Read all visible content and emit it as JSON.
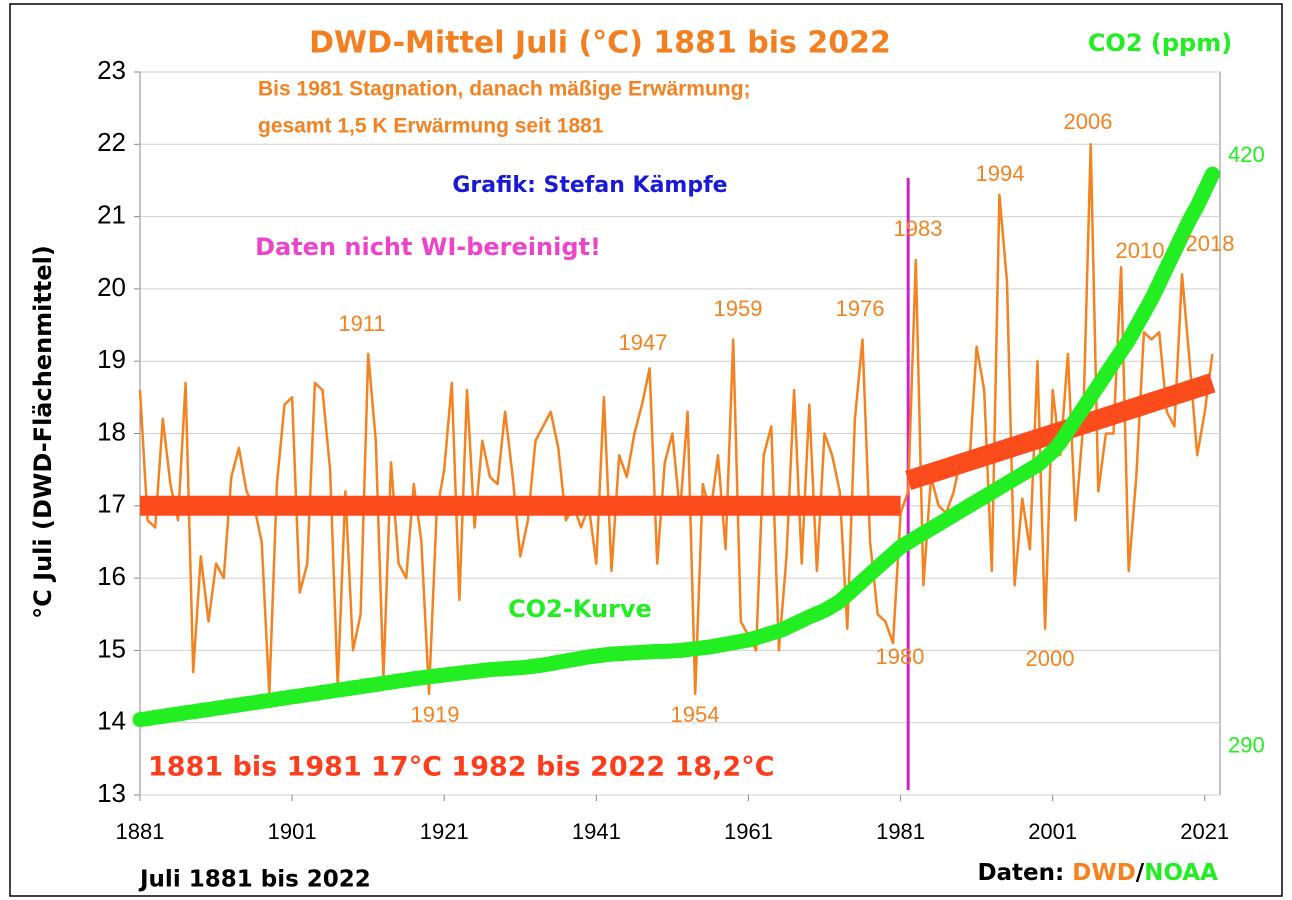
{
  "chart_data": {
    "type": "line",
    "title": "DWD-Mittel Juli (°C) 1881 bis 2022",
    "y_label": "°C Juli (DWD-Flächenmittel)",
    "y2_label": "CO2 (ppm)",
    "x_label": "Juli 1881 bis 2022",
    "notes": [
      "Bis 1981 Stagnation, danach mäßige Erwärmung;",
      "gesamt  1,5 K Erwärmung seit 1881"
    ],
    "credit": "Grafik: Stefan Kämpfe",
    "warning": "Daten nicht WI-bereinigt!",
    "co2_label": "CO2-Kurve",
    "means": "1881 bis 1981 17°C  1982 bis 2022 18,2°C",
    "source": [
      "Daten: ",
      "DWD",
      "/",
      "NOAA"
    ],
    "xlim": [
      1881,
      2023
    ],
    "xticks": [
      1881,
      1901,
      1921,
      1941,
      1961,
      1981,
      2001,
      2021
    ],
    "ylim": [
      13,
      23
    ],
    "yticks": [
      13,
      14,
      15,
      16,
      17,
      18,
      19,
      20,
      21,
      22,
      23
    ],
    "y2lim": [
      279.4,
      438.5
    ],
    "y2ticks": [
      290,
      420
    ],
    "grid": true,
    "x": [
      1881,
      1882,
      1883,
      1884,
      1885,
      1886,
      1887,
      1888,
      1889,
      1890,
      1891,
      1892,
      1893,
      1894,
      1895,
      1896,
      1897,
      1898,
      1899,
      1900,
      1901,
      1902,
      1903,
      1904,
      1905,
      1906,
      1907,
      1908,
      1909,
      1910,
      1911,
      1912,
      1913,
      1914,
      1915,
      1916,
      1917,
      1918,
      1919,
      1920,
      1921,
      1922,
      1923,
      1924,
      1925,
      1926,
      1927,
      1928,
      1929,
      1930,
      1931,
      1932,
      1933,
      1934,
      1935,
      1936,
      1937,
      1938,
      1939,
      1940,
      1941,
      1942,
      1943,
      1944,
      1945,
      1946,
      1947,
      1948,
      1949,
      1950,
      1951,
      1952,
      1953,
      1954,
      1955,
      1956,
      1957,
      1958,
      1959,
      1960,
      1961,
      1962,
      1963,
      1964,
      1965,
      1966,
      1967,
      1968,
      1969,
      1970,
      1971,
      1972,
      1973,
      1974,
      1975,
      1976,
      1977,
      1978,
      1979,
      1980,
      1981,
      1982,
      1983,
      1984,
      1985,
      1986,
      1987,
      1988,
      1989,
      1990,
      1991,
      1992,
      1993,
      1994,
      1995,
      1996,
      1997,
      1998,
      1999,
      2000,
      2001,
      2002,
      2003,
      2004,
      2005,
      2006,
      2007,
      2008,
      2009,
      2010,
      2011,
      2012,
      2013,
      2014,
      2015,
      2016,
      2017,
      2018,
      2019,
      2020,
      2021,
      2022
    ],
    "series": [
      {
        "name": "DWD",
        "color": "#f58220",
        "values": [
          18.6,
          16.8,
          16.7,
          18.2,
          17.3,
          16.8,
          18.7,
          14.7,
          16.3,
          15.4,
          16.2,
          16.0,
          17.4,
          17.8,
          17.2,
          17.0,
          16.5,
          14.4,
          17.3,
          18.4,
          18.5,
          15.8,
          16.2,
          18.7,
          18.6,
          17.5,
          14.5,
          17.2,
          15.0,
          15.5,
          19.1,
          17.9,
          14.6,
          17.6,
          16.2,
          16.0,
          17.3,
          16.5,
          14.4,
          16.9,
          17.5,
          18.7,
          15.7,
          18.6,
          16.7,
          17.9,
          17.4,
          17.3,
          18.3,
          17.4,
          16.3,
          16.8,
          17.9,
          18.1,
          18.3,
          17.8,
          16.8,
          17.0,
          16.7,
          17.0,
          16.2,
          18.5,
          16.1,
          17.7,
          17.4,
          18.0,
          18.4,
          18.9,
          16.2,
          17.6,
          18.0,
          16.9,
          18.3,
          14.4,
          17.3,
          16.9,
          17.7,
          16.4,
          19.3,
          15.4,
          15.2,
          15.0,
          17.7,
          18.1,
          15.0,
          16.3,
          18.6,
          16.2,
          18.4,
          16.1,
          18.0,
          17.7,
          17.2,
          15.3,
          18.2,
          19.3,
          16.5,
          15.5,
          15.4,
          15.1,
          16.9,
          17.2,
          20.4,
          15.9,
          17.4,
          17.0,
          16.9,
          17.2,
          17.7,
          17.5,
          19.2,
          18.6,
          16.1,
          21.3,
          20.1,
          15.9,
          17.1,
          16.4,
          19.0,
          15.3,
          18.6,
          17.7,
          19.1,
          16.8,
          18.1,
          22.0,
          17.2,
          18.0,
          18.0,
          20.3,
          16.1,
          17.4,
          19.4,
          19.3,
          19.4,
          18.3,
          18.1,
          20.2,
          19.0,
          17.7,
          18.3,
          19.1
        ]
      },
      {
        "name": "NOAA",
        "color": "#22ee22",
        "axis": "y2",
        "values": [
          296,
          296.2,
          296.5,
          296.7,
          297,
          297.2,
          297.5,
          297.7,
          298,
          298.2,
          298.5,
          298.7,
          299,
          299.2,
          299.5,
          299.7,
          300,
          300.2,
          300.5,
          300.7,
          301,
          301.2,
          301.5,
          301.7,
          302,
          302.2,
          302.5,
          302.7,
          303,
          303.2,
          303.5,
          303.7,
          304,
          304.2,
          304.5,
          304.7,
          305,
          305.2,
          305.4,
          305.6,
          305.8,
          306,
          306.2,
          306.4,
          306.6,
          306.8,
          307,
          307.1,
          307.2,
          307.3,
          307.4,
          307.6,
          307.8,
          308,
          308.3,
          308.6,
          308.9,
          309.2,
          309.5,
          309.8,
          310,
          310.2,
          310.4,
          310.5,
          310.6,
          310.7,
          310.8,
          310.9,
          311,
          311,
          311.1,
          311.2,
          311.4,
          311.6,
          311.8,
          312,
          312.3,
          312.6,
          312.9,
          313.2,
          313.5,
          314,
          314.5,
          315,
          315.5,
          316.2,
          317,
          317.8,
          318.6,
          319.3,
          320,
          321,
          322,
          323.5,
          325,
          326.5,
          328,
          329.5,
          331,
          332.5,
          334,
          335,
          336,
          337,
          338,
          339,
          340,
          341,
          342,
          343,
          344,
          345,
          346,
          347,
          348,
          349,
          350,
          351,
          352,
          353.5,
          355,
          357,
          359.5,
          362,
          364.5,
          367,
          369.5,
          372,
          374.5,
          377,
          379.5,
          382.5,
          385.5,
          388.5,
          392,
          395.5,
          399,
          402.5,
          406,
          409,
          412.5,
          416
        ]
      }
    ],
    "trends": [
      {
        "color": "#fc4c1c",
        "x": [
          1881,
          1981
        ],
        "values": [
          17,
          17
        ]
      },
      {
        "color": "#fc4c1c",
        "x": [
          1982,
          2022
        ],
        "values": [
          17.35,
          18.7
        ]
      }
    ],
    "vline": {
      "x": 1982,
      "color": "#cc22cc"
    },
    "annotations": [
      "1911",
      "1919",
      "1947",
      "1954",
      "1959",
      "1976",
      "1980",
      "1983",
      "1994",
      "2000",
      "2006",
      "2010",
      "2018"
    ]
  }
}
